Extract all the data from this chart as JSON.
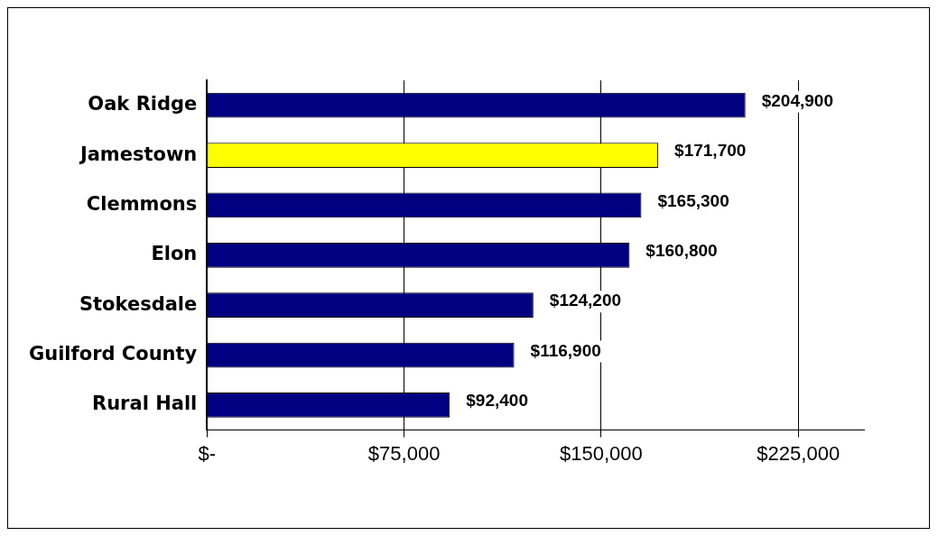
{
  "chart_data": {
    "type": "bar",
    "orientation": "horizontal",
    "categories": [
      "Oak Ridge",
      "Jamestown",
      "Clemmons",
      "Elon",
      "Stokesdale",
      "Guilford County",
      "Rural Hall"
    ],
    "values": [
      204900,
      171700,
      165300,
      160800,
      124200,
      116900,
      92400
    ],
    "colors": [
      "#000080",
      "#ffff00",
      "#000080",
      "#000080",
      "#000080",
      "#000080",
      "#000080"
    ],
    "value_labels": [
      "$204,900",
      "$171,700",
      "$165,300",
      "$160,800",
      "$124,200",
      "$116,900",
      "$92,400"
    ],
    "xlim": [
      0,
      250000
    ],
    "xticks": [
      {
        "value": 0,
        "label": "$-"
      },
      {
        "value": 75000,
        "label": "$75,000"
      },
      {
        "value": 150000,
        "label": "$150,000"
      },
      {
        "value": 225000,
        "label": "$225,000"
      }
    ],
    "grid": "x",
    "legend": false
  }
}
